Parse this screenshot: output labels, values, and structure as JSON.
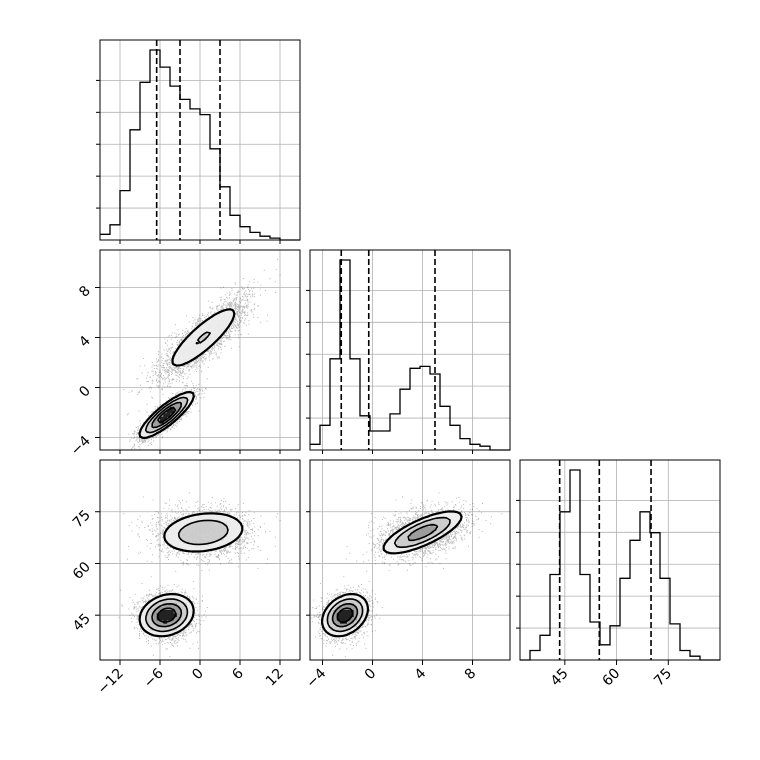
{
  "chart_data": {
    "type": "corner",
    "grid": true,
    "colors": {
      "line": "#000000",
      "grid": "#b0b0b0",
      "points": "#333333"
    },
    "parameters": [
      {
        "range": [
          -15,
          15
        ],
        "ticks": [
          "−12",
          "−6",
          "0",
          "6",
          "12"
        ],
        "tick_values": [
          -12,
          -6,
          0,
          6,
          12
        ],
        "quantiles": [
          -6.5,
          -3,
          3
        ]
      },
      {
        "range": [
          -5,
          11
        ],
        "ticks": [
          "−4",
          "0",
          "4",
          "8"
        ],
        "tick_values": [
          -4,
          0,
          4,
          8
        ],
        "quantiles": [
          -2.5,
          -0.3,
          5
        ]
      },
      {
        "range": [
          32,
          90
        ],
        "ticks": [
          "45",
          "60",
          "75"
        ],
        "tick_values": [
          45,
          60,
          75
        ],
        "quantiles": [
          43.5,
          55,
          70
        ]
      }
    ],
    "histograms": [
      {
        "edges_start": -15,
        "bin_width": 1.5,
        "counts": [
          0.03,
          0.08,
          0.26,
          0.58,
          0.83,
          1.0,
          0.91,
          0.81,
          0.74,
          0.69,
          0.66,
          0.48,
          0.28,
          0.13,
          0.07,
          0.04,
          0.02,
          0.01,
          0.0,
          0.0
        ]
      },
      {
        "edges_start": -5,
        "bin_width": 0.8,
        "counts": [
          0.03,
          0.13,
          0.48,
          1.0,
          0.48,
          0.18,
          0.1,
          0.1,
          0.19,
          0.32,
          0.43,
          0.44,
          0.4,
          0.23,
          0.13,
          0.06,
          0.03,
          0.02,
          0.0,
          0.0
        ]
      },
      {
        "edges_start": 32,
        "bin_width": 2.9,
        "counts": [
          0.0,
          0.05,
          0.13,
          0.45,
          0.78,
          1.0,
          0.45,
          0.2,
          0.08,
          0.18,
          0.43,
          0.63,
          0.78,
          0.67,
          0.43,
          0.19,
          0.05,
          0.02,
          0.0,
          0.0
        ]
      }
    ],
    "components": [
      {
        "weight": 0.5,
        "mean": [
          -5,
          -2.2,
          45
        ],
        "std": [
          2.0,
          0.9,
          3.0
        ],
        "rho": [
          0.85,
          0.2,
          0.3
        ]
      },
      {
        "weight": 0.5,
        "mean": [
          0.5,
          4,
          69
        ],
        "std": [
          3.5,
          1.7,
          3.3
        ],
        "rho": [
          0.85,
          0.2,
          0.75
        ]
      }
    ]
  }
}
